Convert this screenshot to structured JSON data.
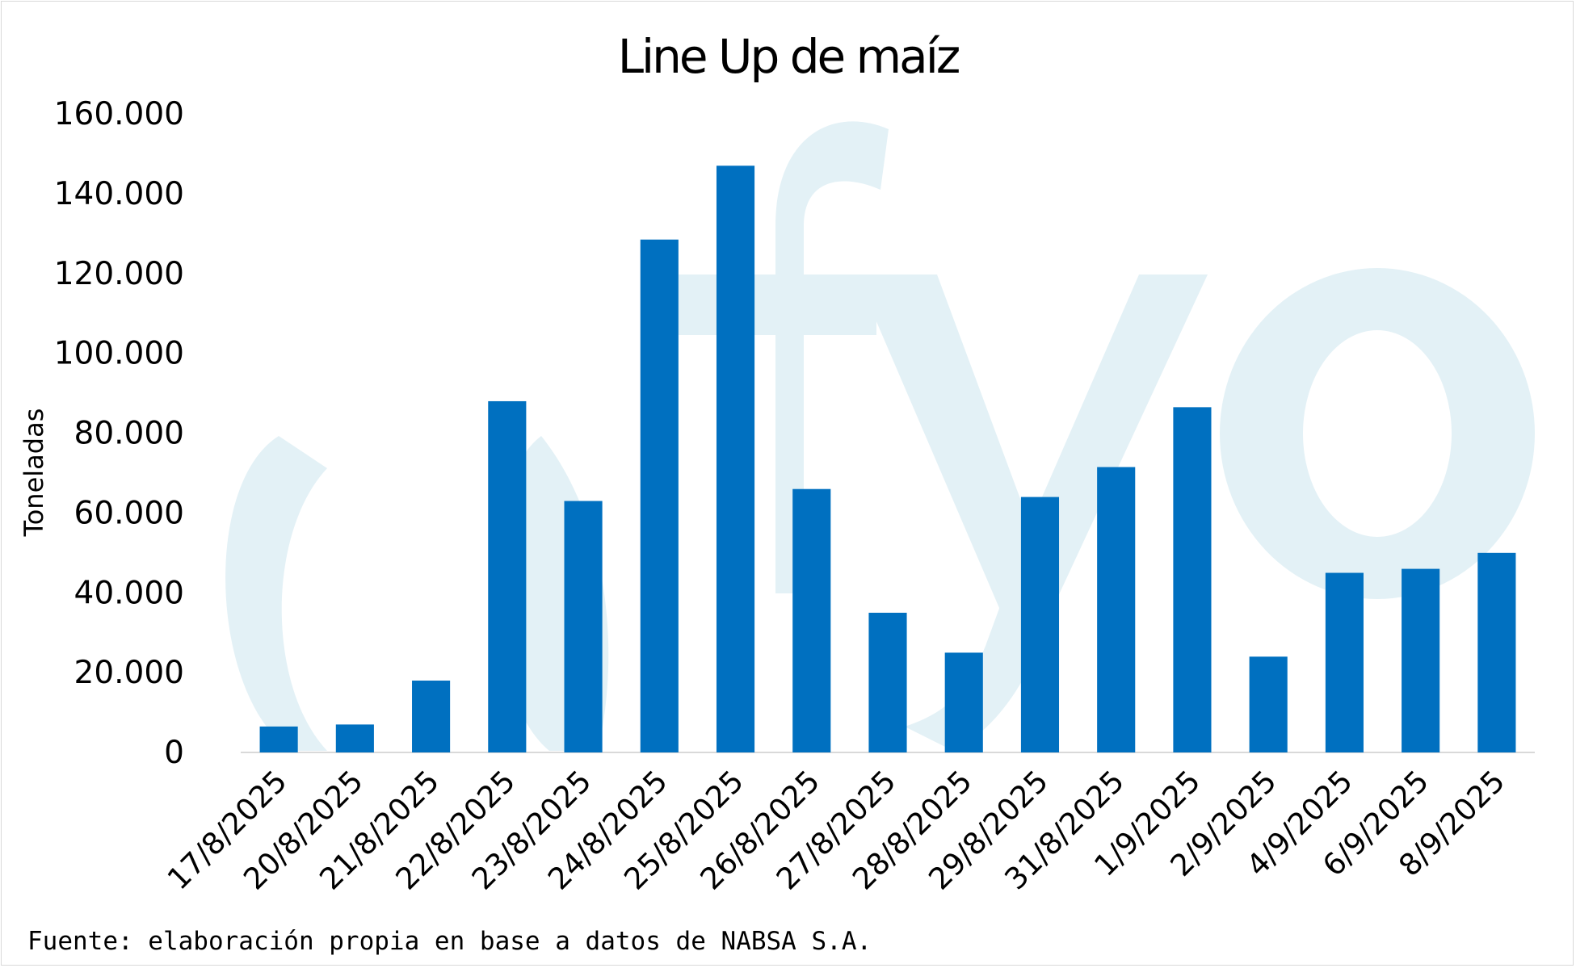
{
  "chart_data": {
    "type": "bar",
    "title": "Line Up de maíz",
    "ylabel": "Toneladas",
    "xlabel": "",
    "ylim": [
      0,
      160000
    ],
    "yticks": [
      "0",
      "20.000",
      "40.000",
      "60.000",
      "80.000",
      "100.000",
      "120.000",
      "140.000",
      "160.000"
    ],
    "categories": [
      "17/8/2025",
      "20/8/2025",
      "21/8/2025",
      "22/8/2025",
      "23/8/2025",
      "24/8/2025",
      "25/8/2025",
      "26/8/2025",
      "27/8/2025",
      "28/8/2025",
      "29/8/2025",
      "31/8/2025",
      "1/9/2025",
      "2/9/2025",
      "4/9/2025",
      "6/9/2025",
      "8/9/2025"
    ],
    "values": [
      6500,
      7000,
      18000,
      88000,
      63000,
      128500,
      147000,
      66000,
      35000,
      25000,
      64000,
      71500,
      86500,
      24000,
      45000,
      46000,
      50000
    ],
    "grid": false,
    "bar_color": "#0070C0"
  },
  "footer": {
    "source": "Fuente: elaboración propia en base a datos de NABSA S.A."
  },
  "watermark": {
    "text": "cfyo",
    "color": "#E3F1F6"
  }
}
